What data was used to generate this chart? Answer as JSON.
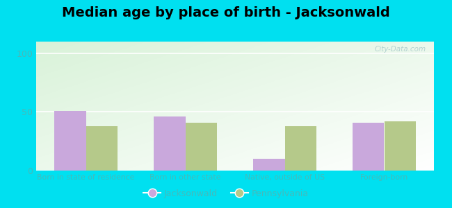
{
  "title": "Median age by place of birth - Jacksonwald",
  "categories": [
    "Born in state of residence",
    "Born in other state",
    "Native, outside of US",
    "Foreign-born"
  ],
  "jacksonwald_values": [
    51,
    46,
    10,
    41
  ],
  "pennsylvania_values": [
    38,
    41,
    38,
    42
  ],
  "bar_color_jacksonwald": "#c9a8dc",
  "bar_color_pennsylvania": "#b5c98a",
  "ylim": [
    0,
    110
  ],
  "yticks": [
    0,
    50,
    100
  ],
  "background_outer": "#00e0f0",
  "legend_jacksonwald": "Jacksonwald",
  "legend_pennsylvania": "Pennsylvania",
  "bar_width": 0.32,
  "title_fontsize": 14,
  "watermark": "City-Data.com",
  "tick_label_color": "#44bbbb",
  "grid_color": "#ffffff"
}
